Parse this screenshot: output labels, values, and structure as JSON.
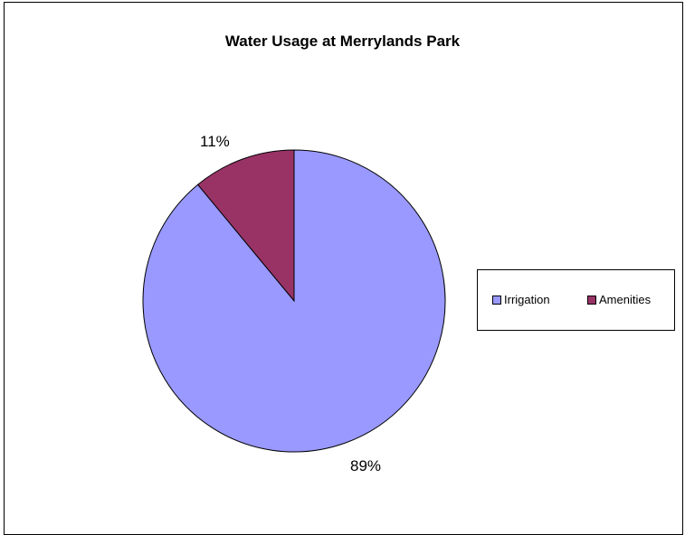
{
  "chart_data": {
    "type": "pie",
    "title": "Water Usage at Merrylands Park",
    "slices": [
      {
        "label": "Irrigation",
        "value": 89,
        "display": "89%",
        "color": "#9999FF"
      },
      {
        "label": "Amenities",
        "value": 11,
        "display": "11%",
        "color": "#993366"
      }
    ],
    "legend_position": "right",
    "start_angle": "12 o'clock, clockwise",
    "outline_color": "#000000"
  }
}
